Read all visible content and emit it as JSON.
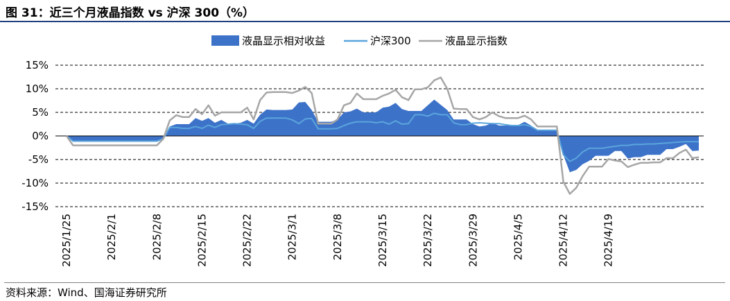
{
  "title": "图 31：近三个月液晶指数 vs 沪深 300（%）",
  "source": "资料来源：Wind、国海证券研究所",
  "colors": {
    "area": "#3d72c9",
    "hs300": "#5aa5dc",
    "index": "#a6a6a6",
    "grid": "#000000",
    "title_rule": "#1f3f7f"
  },
  "chart_data": {
    "type": "area",
    "title": "近三个月液晶指数 vs 沪深 300（%）",
    "ylim": [
      -15,
      15
    ],
    "yticks": [
      15,
      10,
      5,
      0,
      -5,
      -10,
      -15
    ],
    "ytick_labels": [
      "15%",
      "10%",
      "5%",
      "0%",
      "-5%",
      "-10%",
      "-15%"
    ],
    "xtick_labels": [
      "2025/1/25",
      "2025/2/1",
      "2025/2/8",
      "2025/2/15",
      "2025/2/22",
      "2025/3/1",
      "2025/3/8",
      "2025/3/15",
      "2025/3/22",
      "2025/3/29",
      "2025/4/5",
      "2025/4/12",
      "2025/4/19"
    ],
    "grid": "horizontal dashed",
    "legend": "top",
    "series": [
      {
        "name": "液晶显示相对收益",
        "type": "area",
        "values": [
          0,
          -1.1,
          -1.1,
          -1.1,
          -1.1,
          -1.1,
          -1.1,
          -1.1,
          -1.1,
          -1.1,
          -1.1,
          -1.1,
          -1.1,
          -1.1,
          -1.1,
          -0.6,
          2,
          2.5,
          2.5,
          2.5,
          3.8,
          3.2,
          3.8,
          2.8,
          3.4,
          2.6,
          2.6,
          2.8,
          3.4,
          2.6,
          4.5,
          5.6,
          5.5,
          5.5,
          5.5,
          5.6,
          7.1,
          7.2,
          5.5,
          3,
          3,
          3,
          3.5,
          5,
          5.2,
          5.8,
          5,
          5,
          5,
          6,
          6.2,
          7,
          5.7,
          5.3,
          5.3,
          5.3,
          6.5,
          7.7,
          6.6,
          5.5,
          3.5,
          3.5,
          3.5,
          2.5,
          2,
          2.2,
          2.8,
          2.2,
          2.2,
          2.2,
          2.3,
          3,
          2.2,
          1.2,
          1.1,
          1.1,
          1.1,
          -4,
          -7.7,
          -7.2,
          -6,
          -5.3,
          -4.2,
          -4.2,
          -4.2,
          -3.2,
          -3.2,
          -4.8,
          -4.5,
          -4.5,
          -4,
          -4,
          -4,
          -2.8,
          -2.8,
          -2.3,
          -1.7,
          -3.2,
          -3.1
        ]
      },
      {
        "name": "沪深300",
        "type": "line",
        "values": [
          0,
          -1.1,
          -1.1,
          -1.1,
          -1.1,
          -1.1,
          -1.1,
          -1.1,
          -1.1,
          -1.1,
          -1.1,
          -1.1,
          -1.1,
          -1.1,
          -1.1,
          -0.6,
          1.8,
          1.8,
          1.6,
          1.6,
          2,
          1.6,
          2.3,
          1.8,
          2.4,
          2.5,
          2.6,
          2.5,
          2.4,
          1.6,
          3.1,
          3.8,
          3.8,
          3.8,
          3.8,
          3.4,
          2.6,
          3.6,
          3.7,
          1.5,
          1.5,
          1.5,
          1.6,
          2.2,
          2.7,
          3,
          3,
          3,
          2.8,
          3,
          2.5,
          3.2,
          2.5,
          2.6,
          4.5,
          4.5,
          4.2,
          4.8,
          4.5,
          4.5,
          2.8,
          2.4,
          2.4,
          2.7,
          2.8,
          2.7,
          2.6,
          2.6,
          2.4,
          2.2,
          2.2,
          2.4,
          2,
          1.2,
          1.2,
          1.2,
          1.2,
          -4,
          -5.4,
          -4.7,
          -3.4,
          -2.6,
          -2.6,
          -2.6,
          -2.4,
          -2.2,
          -2,
          -2,
          -1.8,
          -1.8,
          -1.7,
          -1.7,
          -1.6,
          -1.5,
          -1.4,
          -1.3,
          -1.2,
          -1.2,
          -1.2
        ]
      },
      {
        "name": "液晶显示指数",
        "type": "line",
        "values": [
          0,
          -2,
          -2,
          -2,
          -2,
          -2,
          -2,
          -2,
          -2,
          -2,
          -2,
          -2,
          -2,
          -2,
          -2,
          -0.6,
          3.3,
          4.4,
          4,
          4,
          5.7,
          4.6,
          6.5,
          4.3,
          5,
          5,
          5,
          5,
          6,
          3.5,
          7.6,
          9.2,
          9.3,
          9.3,
          9.3,
          9.1,
          9.6,
          10.4,
          9.1,
          2.6,
          2.6,
          2.6,
          3.5,
          6.5,
          7,
          9,
          7.8,
          7.8,
          7.8,
          8.5,
          9,
          9.8,
          8.2,
          7.6,
          9.9,
          9.9,
          10.3,
          11.8,
          12.4,
          10,
          5.8,
          5.7,
          5.7,
          4,
          3.5,
          4,
          5,
          4.2,
          3.8,
          3.8,
          3.8,
          4.3,
          3.5,
          2,
          2,
          2,
          2,
          -9.7,
          -12.3,
          -11,
          -8.5,
          -6.5,
          -6.5,
          -6.5,
          -4.9,
          -5.2,
          -5.4,
          -6.6,
          -6.1,
          -5.7,
          -5.7,
          -5.6,
          -5.6,
          -4.7,
          -4.7,
          -3.6,
          -2.9,
          -4.7,
          -4.5
        ]
      }
    ]
  }
}
